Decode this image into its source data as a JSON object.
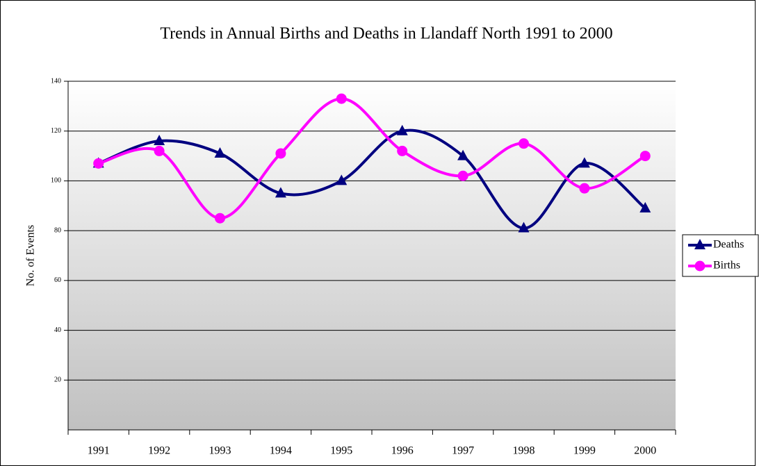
{
  "chart_data": {
    "type": "line",
    "title": "Trends in Annual Births and Deaths in Llandaff North 1991 to 2000",
    "y_label": "No. of Events",
    "categories": [
      "1991",
      "1992",
      "1993",
      "1994",
      "1995",
      "1996",
      "1997",
      "1998",
      "1999",
      "2000"
    ],
    "series": [
      {
        "name": "Deaths",
        "color": "#000080",
        "marker": "triangle",
        "values": [
          107,
          116,
          111,
          95,
          100,
          120,
          110,
          81,
          107,
          89
        ]
      },
      {
        "name": "Births",
        "color": "#ff00ff",
        "marker": "circle",
        "values": [
          107,
          112,
          85,
          111,
          133,
          112,
          102,
          115,
          97,
          110
        ]
      }
    ],
    "ylim": [
      0,
      140
    ],
    "yticks": [
      20,
      40,
      60,
      80,
      100,
      120,
      140
    ],
    "grid": true,
    "smooth": true,
    "legend": "right"
  }
}
